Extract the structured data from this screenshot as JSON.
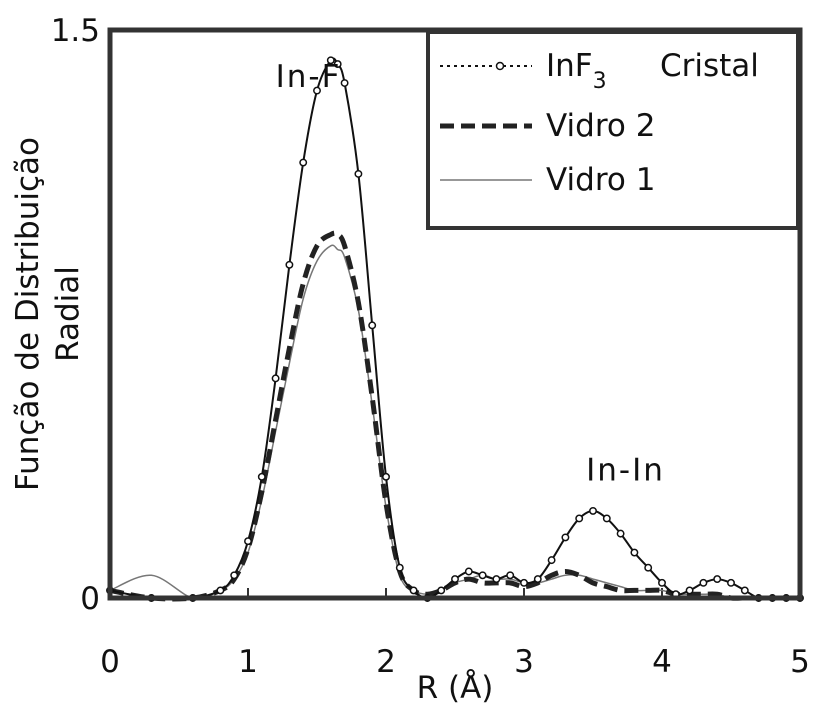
{
  "chart_data": {
    "type": "line",
    "title": "",
    "xlabel": "R (Å)",
    "ylabel_lines": [
      "Função de Distribuição",
      "Radial"
    ],
    "xlim": [
      0,
      5
    ],
    "ylim": [
      0,
      1.5
    ],
    "x_ticks": [
      "0",
      "1",
      "2",
      "3",
      "4",
      "5"
    ],
    "y_ticks": [
      "0",
      "1.5"
    ],
    "grid": false,
    "legend_position": "top-right",
    "annotations": [
      {
        "text": "In-F",
        "x": 1.2,
        "y": 1.35
      },
      {
        "text": "In-In",
        "x": 3.45,
        "y": 0.31
      }
    ],
    "legend": {
      "items": [
        {
          "label": "InF",
          "subscript": "3",
          "suffix": "Cristal"
        },
        {
          "label": "Vidro  2"
        },
        {
          "label": "Vidro  1"
        }
      ]
    },
    "series": [
      {
        "name": "InF3 Cristal",
        "color": "#111111",
        "dash": "",
        "marker": "circle",
        "x": [
          0.0,
          0.3,
          0.6,
          0.8,
          0.9,
          1.0,
          1.1,
          1.2,
          1.3,
          1.4,
          1.5,
          1.6,
          1.65,
          1.7,
          1.8,
          1.9,
          2.0,
          2.1,
          2.2,
          2.3,
          2.4,
          2.5,
          2.6,
          2.7,
          2.8,
          2.9,
          3.0,
          3.1,
          3.2,
          3.3,
          3.4,
          3.5,
          3.6,
          3.7,
          3.8,
          3.9,
          4.0,
          4.1,
          4.2,
          4.3,
          4.4,
          4.5,
          4.6,
          4.7,
          4.8,
          4.9,
          5.0
        ],
        "y": [
          0.02,
          0.0,
          0.0,
          0.02,
          0.06,
          0.15,
          0.32,
          0.58,
          0.88,
          1.15,
          1.34,
          1.42,
          1.41,
          1.36,
          1.12,
          0.72,
          0.32,
          0.08,
          0.02,
          0.0,
          0.02,
          0.05,
          0.07,
          0.06,
          0.05,
          0.06,
          0.04,
          0.05,
          0.1,
          0.16,
          0.21,
          0.23,
          0.21,
          0.17,
          0.12,
          0.08,
          0.04,
          0.01,
          0.02,
          0.04,
          0.05,
          0.04,
          0.02,
          0.0,
          0.0,
          0.0,
          0.0
        ]
      },
      {
        "name": "Vidro 2",
        "color": "#222222",
        "dash": "14 7",
        "marker": "",
        "x": [
          0.0,
          0.3,
          0.6,
          0.8,
          0.9,
          1.0,
          1.1,
          1.2,
          1.3,
          1.4,
          1.5,
          1.6,
          1.65,
          1.7,
          1.8,
          1.9,
          2.0,
          2.1,
          2.2,
          2.3,
          2.4,
          2.5,
          2.6,
          2.7,
          2.8,
          2.9,
          3.0,
          3.1,
          3.2,
          3.3,
          3.4,
          3.5,
          3.6,
          3.7,
          3.8,
          3.9,
          4.0,
          4.1,
          4.2,
          4.3,
          4.4,
          4.5,
          4.6,
          4.7,
          4.8,
          4.9,
          5.0
        ],
        "y": [
          0.02,
          0.0,
          0.0,
          0.02,
          0.05,
          0.13,
          0.28,
          0.47,
          0.66,
          0.83,
          0.93,
          0.96,
          0.96,
          0.93,
          0.78,
          0.53,
          0.25,
          0.07,
          0.02,
          0.01,
          0.02,
          0.04,
          0.05,
          0.04,
          0.04,
          0.04,
          0.03,
          0.04,
          0.06,
          0.07,
          0.06,
          0.04,
          0.03,
          0.02,
          0.02,
          0.02,
          0.02,
          0.01,
          0.01,
          0.01,
          0.01,
          0.0,
          0.0,
          0.0,
          0.0,
          0.0,
          0.0
        ]
      },
      {
        "name": "Vidro 1",
        "color": "#777777",
        "dash": "",
        "marker": "",
        "x": [
          0.0,
          0.3,
          0.6,
          0.8,
          0.9,
          1.0,
          1.1,
          1.2,
          1.3,
          1.4,
          1.5,
          1.6,
          1.65,
          1.7,
          1.8,
          1.9,
          2.0,
          2.1,
          2.2,
          2.3,
          2.4,
          2.5,
          2.6,
          2.7,
          2.8,
          2.9,
          3.0,
          3.1,
          3.2,
          3.3,
          3.4,
          3.5,
          3.6,
          3.7,
          3.8,
          3.9,
          4.0,
          4.1,
          4.2,
          4.3,
          4.4,
          4.5,
          4.6,
          4.7,
          4.8,
          4.9,
          5.0
        ],
        "y": [
          0.02,
          0.06,
          0.0,
          0.02,
          0.05,
          0.12,
          0.26,
          0.44,
          0.62,
          0.79,
          0.89,
          0.93,
          0.92,
          0.9,
          0.76,
          0.51,
          0.24,
          0.06,
          0.02,
          0.01,
          0.02,
          0.04,
          0.05,
          0.06,
          0.05,
          0.05,
          0.04,
          0.04,
          0.05,
          0.06,
          0.06,
          0.05,
          0.04,
          0.03,
          0.02,
          0.02,
          0.02,
          0.01,
          0.01,
          0.01,
          0.01,
          0.0,
          0.0,
          0.0,
          0.0,
          0.0,
          0.0
        ]
      }
    ]
  }
}
